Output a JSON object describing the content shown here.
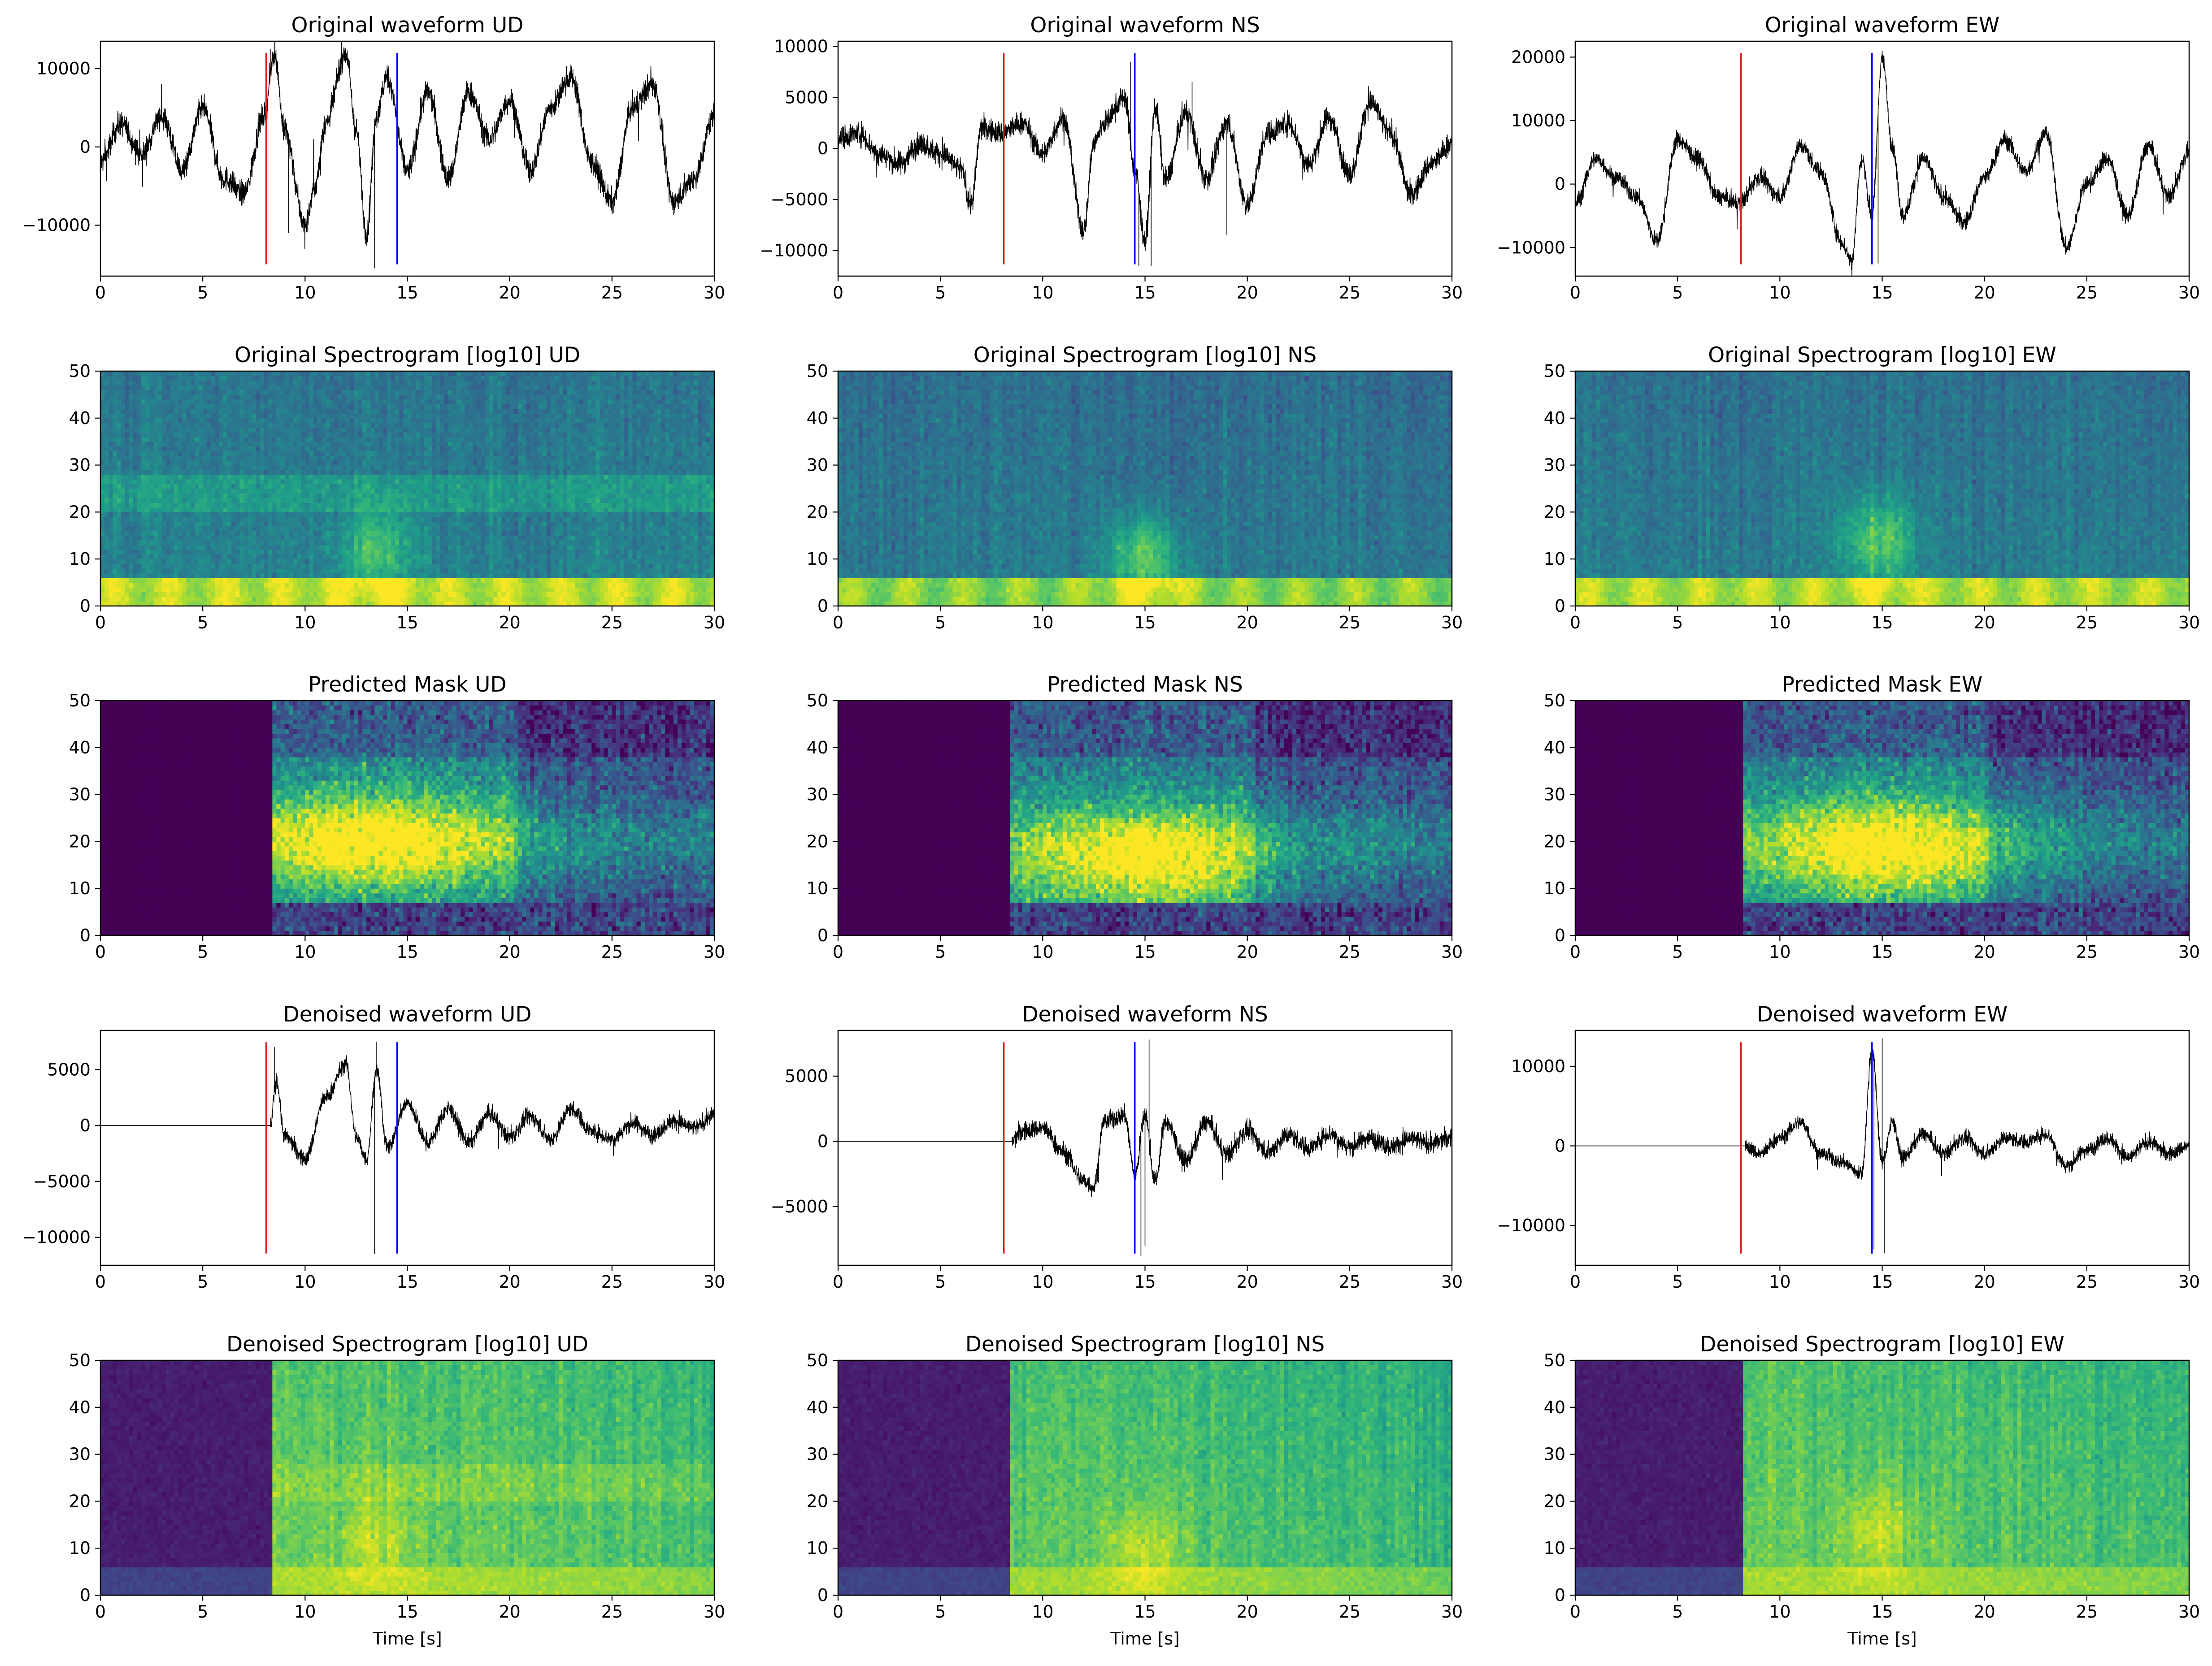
{
  "figure": {
    "columns": [
      "UD",
      "NS",
      "EW"
    ],
    "xlabel": "Time [s]"
  },
  "chart_data": [
    {
      "type": "line",
      "row": 0,
      "col": 0,
      "kind": "waveform",
      "title": "Original waveform UD",
      "xlim": [
        0,
        30
      ],
      "ylim": [
        -16500,
        13500
      ],
      "xticks": [
        0,
        5,
        10,
        15,
        20,
        25,
        30
      ],
      "yticks": [
        -10000,
        0,
        10000
      ],
      "ytick_labels": [
        "−10000",
        "0",
        "10000"
      ],
      "x": [
        0,
        1,
        2,
        3,
        4,
        5,
        6,
        7,
        8,
        8.5,
        9,
        10,
        10.5,
        11,
        12,
        12.5,
        13,
        13.5,
        14,
        15,
        16,
        17,
        18,
        19,
        20,
        21,
        22,
        23,
        24,
        25,
        26,
        27,
        28,
        29,
        30
      ],
      "y": [
        -2000,
        3000,
        -1000,
        4000,
        -3000,
        5000,
        -4000,
        -6000,
        4000,
        12000,
        2000,
        -10000,
        -5000,
        3000,
        12000,
        2000,
        -11000,
        4000,
        9000,
        -3000,
        7000,
        -4000,
        7000,
        1000,
        6000,
        -3000,
        5000,
        9000,
        -2000,
        -7000,
        5000,
        8000,
        -7000,
        -4000,
        4000
      ],
      "noise": 1500,
      "spikes": [
        [
          13.4,
          -15500
        ],
        [
          8.3,
          12500
        ],
        [
          9.2,
          -11000
        ]
      ],
      "picks": [
        {
          "t": 8.1,
          "color": "#e41a1c"
        },
        {
          "t": 14.5,
          "color": "#0000ff"
        }
      ]
    },
    {
      "type": "line",
      "row": 0,
      "col": 1,
      "kind": "waveform",
      "title": "Original waveform NS",
      "xlim": [
        0,
        30
      ],
      "ylim": [
        -12500,
        10500
      ],
      "xticks": [
        0,
        5,
        10,
        15,
        20,
        25,
        30
      ],
      "yticks": [
        -10000,
        -5000,
        0,
        5000,
        10000
      ],
      "ytick_labels": [
        "−10000",
        "−5000",
        "0",
        "5000",
        "10000"
      ],
      "x": [
        0,
        1,
        2,
        3,
        4,
        5,
        6,
        6.5,
        7,
        8,
        9,
        10,
        11,
        12,
        12.5,
        13,
        14,
        14.5,
        15,
        15.5,
        16,
        17,
        18,
        19,
        20,
        21,
        22,
        23,
        24,
        25,
        26,
        27,
        28,
        29,
        30
      ],
      "y": [
        1000,
        1500,
        -500,
        -1500,
        500,
        -500,
        -2000,
        -5500,
        2000,
        1500,
        2500,
        -500,
        3000,
        -8000,
        500,
        2500,
        5000,
        -2000,
        -9000,
        4000,
        -3000,
        3500,
        -3000,
        2500,
        -5500,
        1500,
        2500,
        -1500,
        3000,
        -2500,
        4500,
        1500,
        -4500,
        -1500,
        500
      ],
      "noise": 1100,
      "spikes": [
        [
          14.7,
          -11500
        ],
        [
          15.3,
          -11500
        ],
        [
          14.3,
          8500
        ],
        [
          17.3,
          6500
        ],
        [
          19.0,
          -8500
        ]
      ],
      "picks": [
        {
          "t": 8.1,
          "color": "#e41a1c"
        },
        {
          "t": 14.5,
          "color": "#0000ff"
        }
      ]
    },
    {
      "type": "line",
      "row": 0,
      "col": 2,
      "kind": "waveform",
      "title": "Original waveform EW",
      "xlim": [
        0,
        30
      ],
      "ylim": [
        -14500,
        22500
      ],
      "xticks": [
        0,
        5,
        10,
        15,
        20,
        25,
        30
      ],
      "yticks": [
        -10000,
        0,
        10000,
        20000
      ],
      "ytick_labels": [
        "−10000",
        "0",
        "10000",
        "20000"
      ],
      "x": [
        0,
        1,
        2,
        3,
        4,
        5,
        6,
        7,
        8,
        9,
        10,
        11,
        12,
        13,
        13.5,
        14,
        14.5,
        15,
        15.5,
        16,
        17,
        18,
        19,
        20,
        21,
        22,
        23,
        24,
        25,
        26,
        27,
        28,
        29,
        30
      ],
      "y": [
        -3000,
        4000,
        1000,
        -2000,
        -9000,
        7000,
        4000,
        -2000,
        -3000,
        1000,
        -2000,
        6000,
        2000,
        -9000,
        -12000,
        4000,
        -5000,
        20000,
        6000,
        -5000,
        4000,
        -2000,
        -6000,
        1000,
        7000,
        2000,
        8000,
        -10000,
        0,
        4000,
        -5000,
        6000,
        -2000,
        5000
      ],
      "noise": 1300,
      "spikes": [
        [
          13.5,
          -13500
        ],
        [
          15.0,
          21000
        ],
        [
          14.8,
          -12500
        ]
      ],
      "picks": [
        {
          "t": 8.1,
          "color": "#e41a1c"
        },
        {
          "t": 14.5,
          "color": "#0000ff"
        }
      ]
    },
    {
      "type": "heatmap",
      "row": 1,
      "col": 0,
      "kind": "spectrogram",
      "title": "Original Spectrogram [log10] UD",
      "xlim": [
        0,
        30
      ],
      "ylim": [
        0,
        50
      ],
      "colormap": "viridis",
      "xticks": [
        0,
        5,
        10,
        15,
        20,
        25,
        30
      ],
      "yticks": [
        0,
        10,
        20,
        30,
        40,
        50
      ],
      "base": 0.45,
      "low_band": 0.9,
      "mid_band": [
        20,
        28,
        0.12
      ],
      "event": [
        13.5,
        12,
        0.28
      ],
      "tail": 0,
      "quiet_before": null,
      "low_pulses": true
    },
    {
      "type": "heatmap",
      "row": 1,
      "col": 1,
      "kind": "spectrogram",
      "title": "Original Spectrogram [log10] NS",
      "xlim": [
        0,
        30
      ],
      "ylim": [
        0,
        50
      ],
      "colormap": "viridis",
      "xticks": [
        0,
        5,
        10,
        15,
        20,
        25,
        30
      ],
      "yticks": [
        0,
        10,
        20,
        30,
        40,
        50
      ],
      "base": 0.42,
      "low_band": 0.82,
      "mid_band": null,
      "event": [
        15,
        10,
        0.35
      ],
      "tail": 0,
      "quiet_before": null,
      "low_pulses": true
    },
    {
      "type": "heatmap",
      "row": 1,
      "col": 2,
      "kind": "spectrogram",
      "title": "Original Spectrogram [log10] EW",
      "xlim": [
        0,
        30
      ],
      "ylim": [
        0,
        50
      ],
      "colormap": "viridis",
      "xticks": [
        0,
        5,
        10,
        15,
        20,
        25,
        30
      ],
      "yticks": [
        0,
        10,
        20,
        30,
        40,
        50
      ],
      "base": 0.43,
      "low_band": 0.88,
      "mid_band": null,
      "event": [
        14.8,
        14,
        0.33
      ],
      "tail": 0,
      "quiet_before": null,
      "low_pulses": true
    },
    {
      "type": "heatmap",
      "row": 2,
      "col": 0,
      "kind": "mask",
      "title": "Predicted Mask UD",
      "xlim": [
        0,
        30
      ],
      "ylim": [
        0,
        50
      ],
      "colormap": "viridis",
      "xticks": [
        0,
        5,
        10,
        15,
        20,
        25,
        30
      ],
      "yticks": [
        0,
        10,
        20,
        30,
        40,
        50
      ],
      "onset": 8.4,
      "event": [
        13.5,
        20,
        0.9
      ]
    },
    {
      "type": "heatmap",
      "row": 2,
      "col": 1,
      "kind": "mask",
      "title": "Predicted Mask NS",
      "xlim": [
        0,
        30
      ],
      "ylim": [
        0,
        50
      ],
      "colormap": "viridis",
      "xticks": [
        0,
        5,
        10,
        15,
        20,
        25,
        30
      ],
      "yticks": [
        0,
        10,
        20,
        30,
        40,
        50
      ],
      "onset": 8.5,
      "event": [
        15,
        15,
        0.9
      ]
    },
    {
      "type": "heatmap",
      "row": 2,
      "col": 2,
      "kind": "mask",
      "title": "Predicted Mask EW",
      "xlim": [
        0,
        30
      ],
      "ylim": [
        0,
        50
      ],
      "colormap": "viridis",
      "xticks": [
        0,
        5,
        10,
        15,
        20,
        25,
        30
      ],
      "yticks": [
        0,
        10,
        20,
        30,
        40,
        50
      ],
      "onset": 8.3,
      "event": [
        15,
        18,
        0.9
      ]
    },
    {
      "type": "line",
      "row": 3,
      "col": 0,
      "kind": "waveform",
      "title": "Denoised waveform UD",
      "xlim": [
        0,
        30
      ],
      "ylim": [
        -12500,
        8500
      ],
      "xticks": [
        0,
        5,
        10,
        15,
        20,
        25,
        30
      ],
      "yticks": [
        -10000,
        -5000,
        0,
        5000
      ],
      "ytick_labels": [
        "−10000",
        "−5000",
        "0",
        "5000"
      ],
      "x": [
        0,
        8.3,
        8.6,
        9,
        10,
        11,
        12,
        12.5,
        13,
        13.5,
        14,
        15,
        16,
        17,
        18,
        19,
        20,
        21,
        22,
        23,
        24,
        25,
        26,
        27,
        28,
        29,
        30
      ],
      "y": [
        0,
        0,
        4000,
        -1000,
        -3000,
        2500,
        5500,
        -1000,
        -3000,
        5000,
        -2000,
        2000,
        -1500,
        1500,
        -1500,
        1000,
        -1000,
        800,
        -1200,
        1500,
        -500,
        -1200,
        200,
        -800,
        400,
        -200,
        900
      ],
      "noise": 700,
      "quiet_until": 8.3,
      "spikes": [
        [
          13.4,
          -11500
        ],
        [
          13.5,
          7500
        ],
        [
          8.5,
          7000
        ]
      ],
      "picks": [
        {
          "t": 8.1,
          "color": "#e41a1c"
        },
        {
          "t": 14.5,
          "color": "#0000ff"
        }
      ]
    },
    {
      "type": "line",
      "row": 3,
      "col": 1,
      "kind": "waveform",
      "title": "Denoised waveform NS",
      "xlim": [
        0,
        30
      ],
      "ylim": [
        -9500,
        8500
      ],
      "xticks": [
        0,
        5,
        10,
        15,
        20,
        25,
        30
      ],
      "yticks": [
        -5000,
        0,
        5000
      ],
      "ytick_labels": [
        "−5000",
        "0",
        "5000"
      ],
      "x": [
        0,
        8.5,
        9,
        10,
        11,
        12,
        12.5,
        13,
        14,
        14.5,
        15,
        15.5,
        16,
        17,
        18,
        19,
        20,
        21,
        22,
        23,
        24,
        25,
        26,
        27,
        28,
        29,
        30
      ],
      "y": [
        0,
        0,
        800,
        1000,
        -800,
        -3000,
        -3500,
        1500,
        2000,
        -2500,
        2000,
        -3000,
        1500,
        -1500,
        1500,
        -1000,
        800,
        -800,
        500,
        -500,
        600,
        -400,
        300,
        -400,
        200,
        -200,
        300
      ],
      "noise": 700,
      "quiet_until": 8.5,
      "spikes": [
        [
          14.8,
          -8800
        ],
        [
          15.2,
          7800
        ],
        [
          15.0,
          -8000
        ]
      ],
      "picks": [
        {
          "t": 8.1,
          "color": "#e41a1c"
        },
        {
          "t": 14.5,
          "color": "#0000ff"
        }
      ]
    },
    {
      "type": "line",
      "row": 3,
      "col": 2,
      "kind": "waveform",
      "title": "Denoised waveform EW",
      "xlim": [
        0,
        30
      ],
      "ylim": [
        -15000,
        14500
      ],
      "xticks": [
        0,
        5,
        10,
        15,
        20,
        25,
        30
      ],
      "yticks": [
        -10000,
        0,
        10000
      ],
      "ytick_labels": [
        "−10000",
        "0",
        "10000"
      ],
      "x": [
        0,
        8.3,
        9,
        10,
        11,
        12,
        13,
        14,
        14.5,
        15,
        15.5,
        16,
        17,
        18,
        19,
        20,
        21,
        22,
        23,
        24,
        25,
        26,
        27,
        28,
        29,
        30
      ],
      "y": [
        0,
        0,
        -1000,
        1000,
        3000,
        -1000,
        -2000,
        -3500,
        12000,
        -2000,
        3000,
        -1500,
        1500,
        -1000,
        1000,
        -1000,
        1000,
        500,
        1500,
        -2500,
        -500,
        1000,
        -1500,
        500,
        -1000,
        0
      ],
      "noise": 900,
      "quiet_until": 8.3,
      "spikes": [
        [
          15.0,
          13500
        ],
        [
          15.1,
          -13500
        ],
        [
          14.6,
          -13000
        ]
      ],
      "picks": [
        {
          "t": 8.1,
          "color": "#e41a1c"
        },
        {
          "t": 14.5,
          "color": "#0000ff"
        }
      ]
    },
    {
      "type": "heatmap",
      "row": 4,
      "col": 0,
      "kind": "spectrogram",
      "title": "Denoised Spectrogram [log10] UD",
      "xlim": [
        0,
        30
      ],
      "ylim": [
        0,
        50
      ],
      "colormap": "viridis",
      "xticks": [
        0,
        5,
        10,
        15,
        20,
        25,
        30
      ],
      "yticks": [
        0,
        10,
        20,
        30,
        40,
        50
      ],
      "base": 0.78,
      "low_band": 0.88,
      "mid_band": [
        20,
        28,
        0.06
      ],
      "event": [
        13.5,
        12,
        0.15
      ],
      "tail": -0.06,
      "quiet_before": 8.4,
      "low_pulses": false
    },
    {
      "type": "heatmap",
      "row": 4,
      "col": 1,
      "kind": "spectrogram",
      "title": "Denoised Spectrogram [log10] NS",
      "xlim": [
        0,
        30
      ],
      "ylim": [
        0,
        50
      ],
      "colormap": "viridis",
      "xticks": [
        0,
        5,
        10,
        15,
        20,
        25,
        30
      ],
      "yticks": [
        0,
        10,
        20,
        30,
        40,
        50
      ],
      "base": 0.76,
      "low_band": 0.86,
      "mid_band": null,
      "event": [
        15,
        10,
        0.17
      ],
      "tail": -0.08,
      "quiet_before": 8.5,
      "low_pulses": false
    },
    {
      "type": "heatmap",
      "row": 4,
      "col": 2,
      "kind": "spectrogram",
      "title": "Denoised Spectrogram [log10] EW",
      "xlim": [
        0,
        30
      ],
      "ylim": [
        0,
        50
      ],
      "colormap": "viridis",
      "xticks": [
        0,
        5,
        10,
        15,
        20,
        25,
        30
      ],
      "yticks": [
        0,
        10,
        20,
        30,
        40,
        50
      ],
      "base": 0.77,
      "low_band": 0.87,
      "mid_band": null,
      "event": [
        14.8,
        14,
        0.17
      ],
      "tail": -0.07,
      "quiet_before": 8.3,
      "low_pulses": false
    }
  ]
}
